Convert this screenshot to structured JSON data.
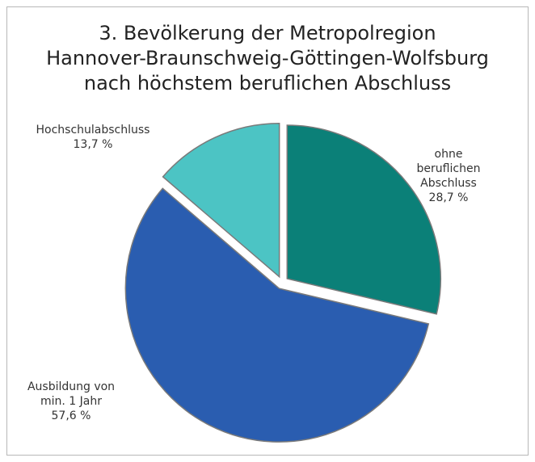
{
  "chart_data": {
    "type": "pie",
    "title": "3. Bevölkerung der Metropolregion\nHannover-Braunschweig-Göttingen-Wolfsburg\nnach höchstem beruflichen Abschluss",
    "categories": [
      "ohne beruflichen\nAbschluss",
      "Ausbildung von\nmin. 1 Jahr",
      "Hochschulabschluss"
    ],
    "values": [
      28.7,
      57.6,
      13.7
    ],
    "value_labels": [
      "28,7 %",
      "57,6 %",
      "13,7 %"
    ],
    "colors": [
      "#0b8078",
      "#2a5db0",
      "#4cc4c4"
    ]
  }
}
